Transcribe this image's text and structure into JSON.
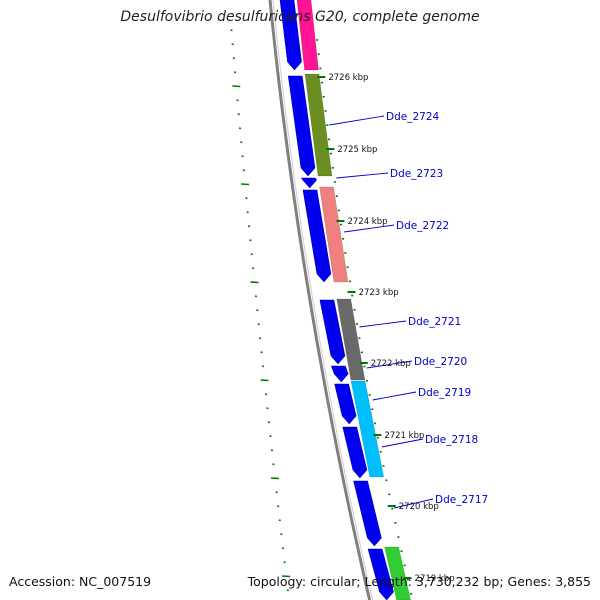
{
  "title": "Desulfovibrio desulfuricans G20, complete genome",
  "footer": {
    "accession": "Accession: NC_007519",
    "summary": "Topology: circular; Length: 3,730,232 bp; Genes: 3,855"
  },
  "colors": {
    "cds_arrow": "#0000ee",
    "backbone": "#808080",
    "tick_mark": "#007700",
    "gene_label": "#0000cc",
    "feature_colors": [
      "#ff1493",
      "#6b8e23",
      "#f08080",
      "#696969",
      "#00bfff",
      "#32cd32"
    ]
  },
  "scale_ticks": [
    "2726 kbp",
    "2725 kbp",
    "2724 kbp",
    "2723 kbp",
    "2722 kbp",
    "2721 kbp",
    "2720 kbp",
    "2719 kbp"
  ],
  "gene_labels": [
    "Dde_2724",
    "Dde_2723",
    "Dde_2722",
    "Dde_2721",
    "Dde_2720",
    "Dde_2719",
    "Dde_2718",
    "Dde_2717"
  ]
}
